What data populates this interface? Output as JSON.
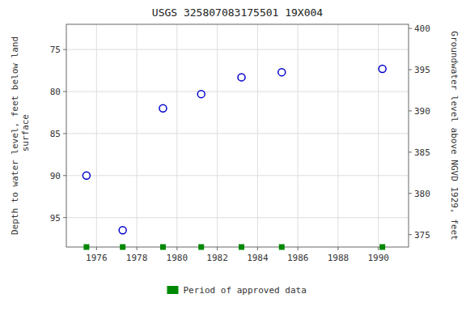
{
  "chart_data": {
    "type": "scatter",
    "title": "USGS 325807083175501 19X004",
    "x": [
      1975.5,
      1977.3,
      1979.3,
      1981.2,
      1983.2,
      1985.2,
      1990.2
    ],
    "series": [
      {
        "values": [
          90.0,
          96.5,
          82.0,
          80.3,
          78.3,
          77.7,
          77.3
        ],
        "color": "#0000cc",
        "marker": "circle"
      },
      {
        "name": "Period of approved data",
        "values": [
          98.5,
          98.5,
          98.5,
          98.5,
          98.5,
          98.5,
          98.5
        ],
        "color": "#008800",
        "marker": "square"
      }
    ],
    "xlim": [
      1974.5,
      1991.5
    ],
    "xticks": [
      1976,
      1978,
      1980,
      1982,
      1984,
      1986,
      1988,
      1990
    ],
    "ylim": [
      98.5,
      72.0
    ],
    "yticks": [
      75,
      80,
      85,
      90,
      95
    ],
    "y2lim": [
      373.5,
      400.5
    ],
    "y2ticks": [
      375,
      380,
      385,
      390,
      395,
      400
    ],
    "ylabel": "Depth to water level, feet below land\n surface",
    "y2label": "Groundwater level above NGVD 1929, feet",
    "grid": true,
    "legend": "bottom"
  }
}
